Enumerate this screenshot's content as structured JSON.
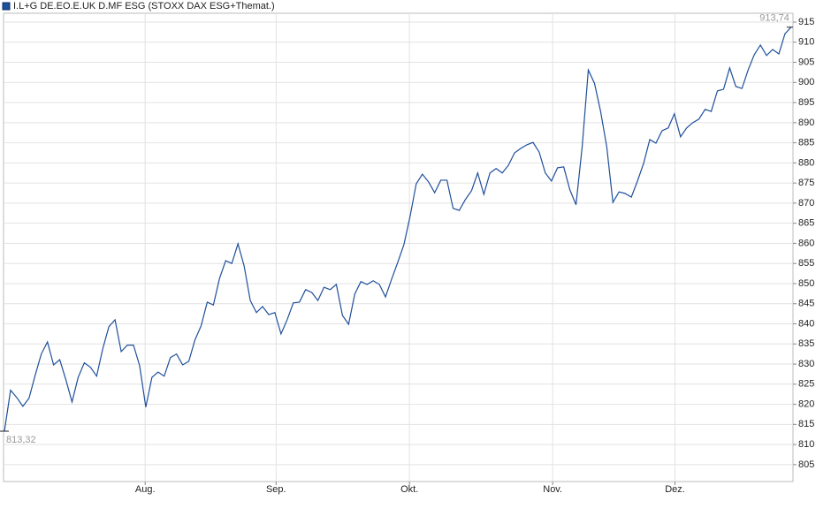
{
  "chart_data": {
    "type": "line",
    "title": "I.L+G DE.EO.E.UK D.MF ESG (STOXX DAX ESG+Themat.)",
    "color": "#1f4f9a",
    "grid": true,
    "values": [
      813.32,
      823.5,
      821.7,
      819.5,
      821.5,
      827.2,
      832.5,
      835.5,
      829.8,
      831.1,
      826.1,
      820.6,
      826.7,
      830.3,
      829.2,
      827,
      833.8,
      839.3,
      841,
      833.1,
      834.7,
      834.7,
      829.6,
      819.3,
      826.7,
      828,
      827,
      831.6,
      832.5,
      829.8,
      830.7,
      836,
      839.5,
      845.4,
      844.7,
      851.3,
      855.7,
      855,
      859.9,
      854.4,
      845.8,
      842.8,
      844.3,
      842.3,
      842.8,
      837.5,
      841,
      845.2,
      845.4,
      848.5,
      847.8,
      845.8,
      849.1,
      848.5,
      849.8,
      842.1,
      839.9,
      847.4,
      850.5,
      849.8,
      850.7,
      849.8,
      846.7,
      851.1,
      855.3,
      859.7,
      866.7,
      874.8,
      877.2,
      875.3,
      872.6,
      875.7,
      875.7,
      868.7,
      868.2,
      870.9,
      873.1,
      877.5,
      872.2,
      877.5,
      878.6,
      877.5,
      879.4,
      882.5,
      883.6,
      884.5,
      885.1,
      882.7,
      877.5,
      875.5,
      878.8,
      879,
      873.3,
      869.6,
      884,
      903.1,
      899.8,
      892.8,
      884,
      870.2,
      872.8,
      872.4,
      871.5,
      875.5,
      879.9,
      885.8,
      884.9,
      888,
      888.7,
      892.2,
      886.5,
      888.7,
      890,
      890.9,
      893.3,
      892.8,
      897.9,
      898.3,
      903.6,
      899,
      898.5,
      903.1,
      906.9,
      909.3,
      906.7,
      908.2,
      907.1,
      912.1,
      913.74
    ],
    "annotations": [
      {
        "label": "813,32",
        "value": 813.32
      },
      {
        "label": "913,74",
        "value": 913.74
      }
    ],
    "xlim": [
      0,
      128.3
    ],
    "xticks": [
      {
        "value": 22.9,
        "label": "Aug."
      },
      {
        "value": 44.2,
        "label": "Sep."
      },
      {
        "value": 65.9,
        "label": "Okt."
      },
      {
        "value": 89.2,
        "label": "Nov."
      },
      {
        "value": 109.1,
        "label": "Dez."
      }
    ],
    "ylim": [
      800.8,
      917.2
    ],
    "yticks": [
      805,
      810,
      815,
      820,
      825,
      830,
      835,
      840,
      845,
      850,
      855,
      860,
      865,
      870,
      875,
      880,
      885,
      890,
      895,
      900,
      905,
      910,
      915
    ]
  }
}
